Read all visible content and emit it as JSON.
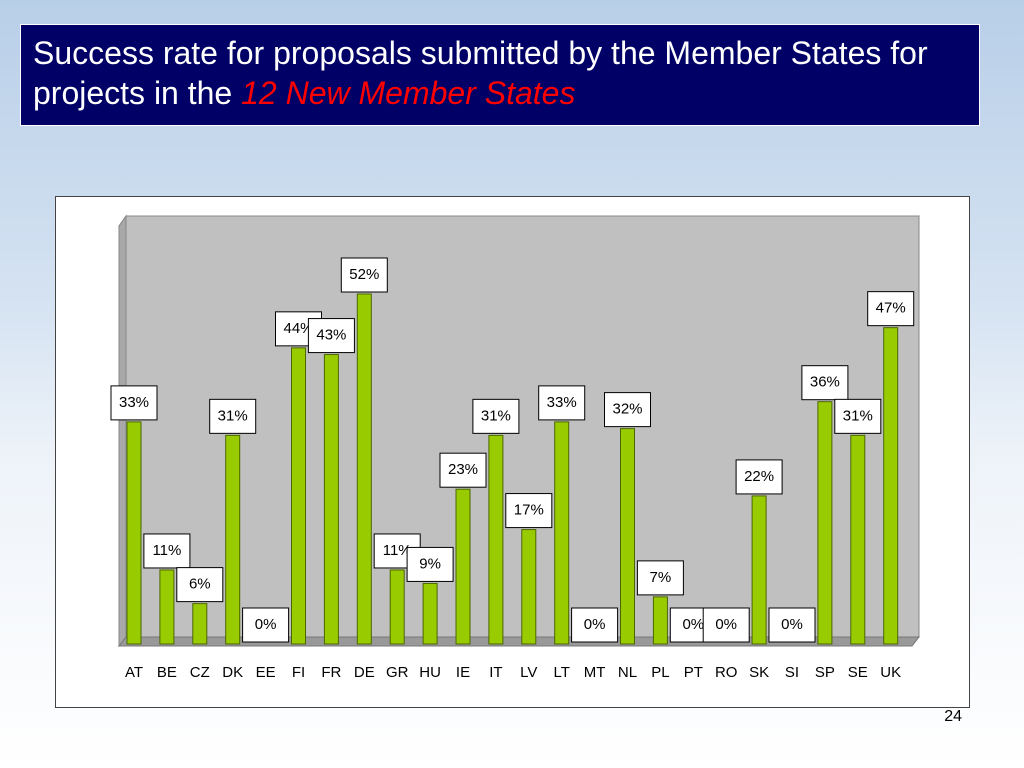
{
  "chart_data": {
    "type": "bar",
    "title": "Success rate for proposals submitted by the Member States for projects in the",
    "title_emphasis": "12 New Member States",
    "categories": [
      "AT",
      "BE",
      "CZ",
      "DK",
      "EE",
      "FI",
      "FR",
      "DE",
      "GR",
      "HU",
      "IE",
      "IT",
      "LV",
      "LT",
      "MT",
      "NL",
      "PL",
      "PT",
      "RO",
      "SK",
      "SI",
      "SP",
      "SE",
      "UK"
    ],
    "values": [
      33,
      11,
      6,
      31,
      0,
      44,
      43,
      52,
      11,
      9,
      23,
      31,
      17,
      33,
      0,
      32,
      7,
      0,
      0,
      22,
      0,
      36,
      31,
      47
    ],
    "value_labels": [
      "33%",
      "11%",
      "6%",
      "31%",
      "0%",
      "44%",
      "43%",
      "52%",
      "11%",
      "9%",
      "23%",
      "31%",
      "17%",
      "33%",
      "0%",
      "32%",
      "7%",
      "0%",
      "0%",
      "22%",
      "0%",
      "36%",
      "31%",
      "47%"
    ],
    "color": "#99cc00"
  },
  "page_number": 24
}
